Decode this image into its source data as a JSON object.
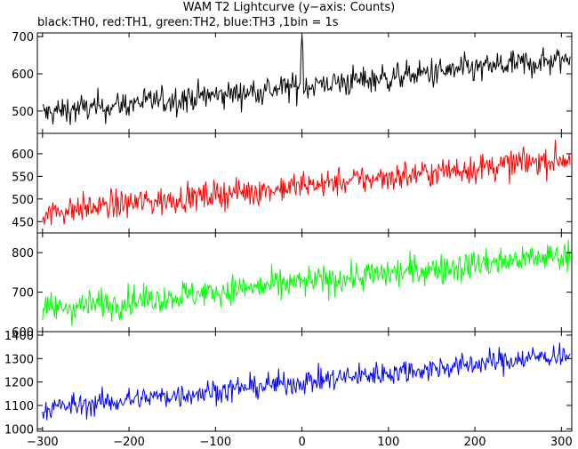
{
  "title": "WAM T2 Lightcurve (y−axis: Counts)",
  "subtitle": "black:TH0, red:TH1, green:TH2, blue:TH3 ,1bin = 1s",
  "chart_data": [
    {
      "type": "line",
      "series": [
        {
          "name": "TH0",
          "color": "#000000",
          "start": 495,
          "end": 640,
          "noise": 30,
          "spike_at_x": 0,
          "spike_value": 705
        }
      ],
      "xlim": [
        -306,
        312
      ],
      "ylim": [
        440,
        710
      ],
      "yticks": [
        500,
        600,
        700
      ],
      "xticks": [
        -300,
        -200,
        -100,
        0,
        100,
        200,
        300
      ],
      "grid": false
    },
    {
      "type": "line",
      "series": [
        {
          "name": "TH1",
          "color": "#ff0000",
          "start": 470,
          "end": 590,
          "noise": 25
        }
      ],
      "xlim": [
        -306,
        312
      ],
      "ylim": [
        425,
        645
      ],
      "yticks": [
        450,
        500,
        550,
        600
      ],
      "xticks": [
        -300,
        -200,
        -100,
        0,
        100,
        200,
        300
      ],
      "grid": false
    },
    {
      "type": "line",
      "series": [
        {
          "name": "TH2",
          "color": "#00ff00",
          "start": 655,
          "end": 795,
          "noise": 30
        }
      ],
      "xlim": [
        -306,
        312
      ],
      "ylim": [
        600,
        850
      ],
      "yticks": [
        600,
        700,
        800
      ],
      "xticks": [
        -300,
        -200,
        -100,
        0,
        100,
        200,
        300
      ],
      "grid": false
    },
    {
      "type": "line",
      "series": [
        {
          "name": "TH3",
          "color": "#0000ff",
          "start": 1085,
          "end": 1320,
          "noise": 40
        }
      ],
      "xlim": [
        -306,
        312
      ],
      "ylim": [
        990,
        1415
      ],
      "yticks": [
        1000,
        1100,
        1200,
        1300,
        1400
      ],
      "xticks": [
        -300,
        -200,
        -100,
        0,
        100,
        200,
        300
      ],
      "xticklabels": [
        "−300",
        "−200",
        "−100",
        "0",
        "100",
        "200",
        "300"
      ],
      "grid": false
    }
  ]
}
